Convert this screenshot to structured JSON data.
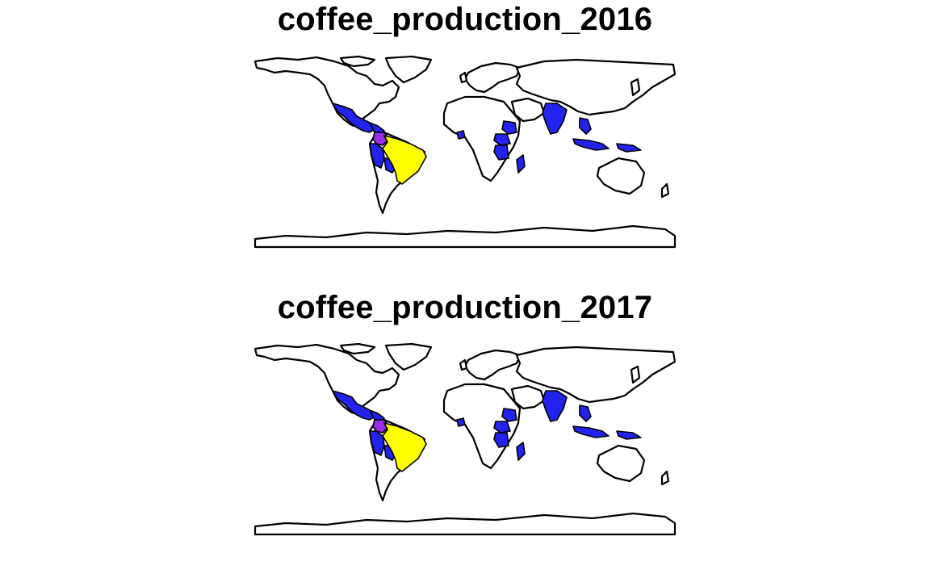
{
  "maps": [
    {
      "title": "coffee_production_2016",
      "legend": null,
      "fill_colors": {
        "highest": "#ffff00",
        "high": "#9a2ee6",
        "medium": "#2323f0",
        "no_data": "#ffffff"
      },
      "countries": {
        "Brazil": "highest",
        "Colombia": "high",
        "Mexico": "medium",
        "Central America": "medium",
        "Ecuador": "medium",
        "Peru": "medium",
        "Bolivia": "medium",
        "Ethiopia": "medium",
        "Kenya": "medium",
        "Uganda": "medium",
        "Tanzania": "medium",
        "Madagascar": "medium",
        "Ivory Coast": "medium",
        "India": "medium",
        "Vietnam": "medium",
        "Indonesia": "medium",
        "Papua New Guinea": "medium"
      }
    },
    {
      "title": "coffee_production_2017",
      "legend": null,
      "fill_colors": {
        "highest": "#ffff00",
        "high": "#9a2ee6",
        "medium": "#2323f0",
        "no_data": "#ffffff"
      },
      "countries": {
        "Brazil": "highest",
        "Colombia": "high",
        "Mexico": "medium",
        "Central America": "medium",
        "Ecuador": "medium",
        "Peru": "medium",
        "Bolivia": "medium",
        "Ethiopia": "medium",
        "Kenya": "medium",
        "Uganda": "medium",
        "Tanzania": "medium",
        "Madagascar": "medium",
        "Ivory Coast": "medium",
        "India": "medium",
        "Vietnam": "medium",
        "Indonesia": "medium",
        "Papua New Guinea": "medium"
      }
    }
  ]
}
